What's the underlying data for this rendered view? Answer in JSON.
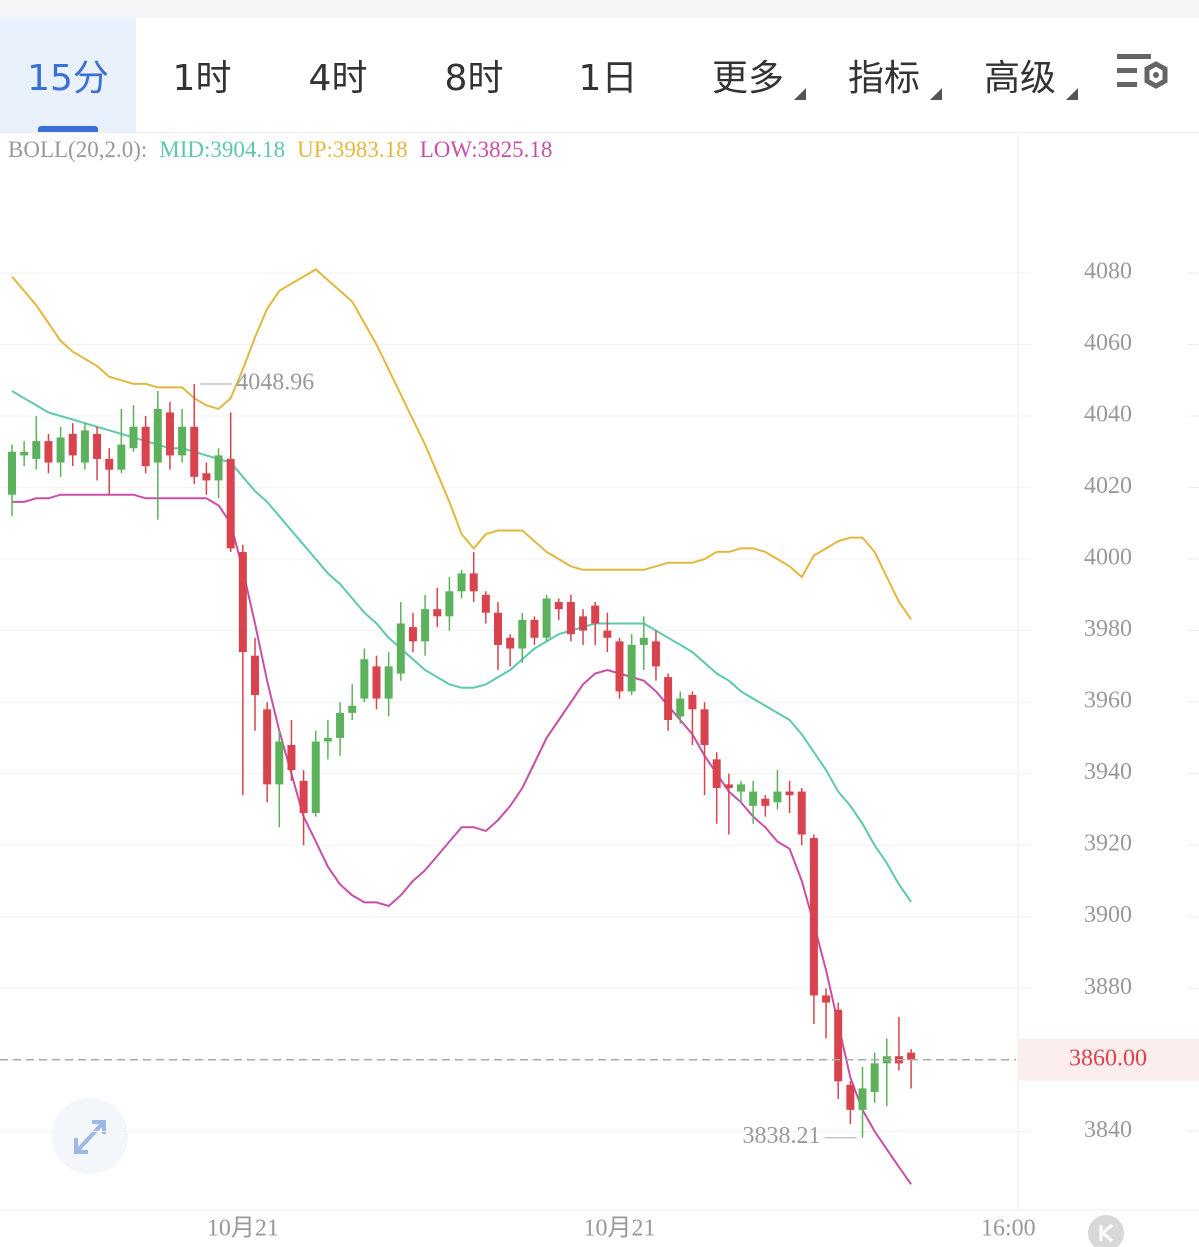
{
  "tabs": [
    "15分",
    "1时",
    "4时",
    "8时",
    "1日",
    "更多",
    "指标",
    "高级"
  ],
  "chart_data": {
    "type": "candlestick",
    "indicator": "BOLL(20,2.0):",
    "categories": [
      null,
      null,
      null,
      null,
      null,
      null,
      null,
      null,
      null,
      null,
      null,
      null,
      null,
      null,
      null,
      null,
      null,
      null,
      null,
      "10月21",
      null,
      null,
      null,
      null,
      null,
      null,
      null,
      null,
      null,
      null,
      null,
      null,
      null,
      null,
      null,
      null,
      null,
      null,
      null,
      null,
      null,
      null,
      null,
      null,
      null,
      null,
      null,
      null,
      null,
      null,
      "10月21",
      null,
      null,
      null,
      null,
      null,
      null,
      null,
      null,
      null,
      null,
      null,
      null,
      null,
      null,
      null,
      null,
      null,
      null,
      null,
      null,
      null,
      null,
      null,
      null,
      null,
      null,
      null,
      null,
      null,
      null,
      null,
      "16:00",
      null
    ],
    "open": [
      4018,
      4029,
      4028,
      4033,
      4027,
      4035,
      4027,
      4035,
      4028,
      4025,
      4031,
      4037,
      4027,
      4041,
      4029,
      4037,
      4024,
      4022,
      4028,
      4002,
      3973,
      3958,
      3937,
      3948,
      3938,
      3929,
      3949,
      3950,
      3957,
      3961,
      3970,
      3961,
      3968,
      3981,
      3977,
      3986,
      3984,
      3991,
      3996,
      3990,
      3985,
      3978,
      3975,
      3983,
      3978,
      3988,
      3988,
      3984,
      3987,
      3980,
      3977,
      3963,
      3976,
      3977,
      3967,
      3956,
      3962,
      3958,
      3944,
      3937,
      3935,
      3931,
      3933,
      3932,
      3935,
      3935,
      3922,
      3878,
      3874,
      3853,
      3846,
      3851,
      3859,
      3861,
      3862,
      null,
      null,
      null,
      null,
      null,
      null,
      null,
      null,
      null
    ],
    "high": [
      4032,
      4033,
      4040,
      4035,
      4037,
      4038,
      4038,
      4037,
      4031,
      4042,
      4043,
      4040,
      4047,
      4044,
      4042,
      4048.96,
      4027,
      4031,
      4041,
      4004,
      3978,
      3960,
      3952,
      3955,
      3941,
      3952,
      3955,
      3960,
      3965,
      3975,
      3973,
      3974,
      3988,
      3985,
      3990,
      3992,
      3995,
      3997,
      4002,
      3991,
      3988,
      3979,
      3985,
      3984,
      3990,
      3989,
      3990,
      3986,
      3988,
      3985,
      3978,
      3979,
      3984,
      3980,
      3968,
      3963,
      3963,
      3960,
      3946,
      3940,
      3938,
      3938,
      3934,
      3941,
      3938,
      3936,
      3923,
      3880,
      3876,
      3854,
      3858,
      3862,
      3866,
      3872,
      3863,
      null,
      null,
      null,
      null,
      null,
      null,
      null,
      null,
      null
    ],
    "low": [
      4012,
      4026,
      4025,
      4024,
      4023,
      4026,
      4025,
      4022,
      4018,
      4024,
      4030,
      4024,
      4011,
      4025,
      4027,
      4021,
      4018,
      4017,
      4002,
      3934,
      3952,
      3932,
      3925,
      3938,
      3920,
      3928,
      3944,
      3945,
      3955,
      3960,
      3958,
      3956,
      3966,
      3974,
      3973,
      3981,
      3980,
      3989,
      3988,
      3982,
      3969,
      3970,
      3971,
      3976,
      3977,
      3983,
      3977,
      3976,
      3976,
      3974,
      3961,
      3962,
      3969,
      3966,
      3952,
      3954,
      3948,
      3934,
      3926,
      3923,
      3932,
      3926,
      3928,
      3930,
      3929,
      3920,
      3870,
      3866,
      3849,
      3842,
      3838.21,
      3848,
      3847,
      3857,
      3852,
      null,
      null,
      null,
      null,
      null,
      null,
      null,
      null,
      null
    ],
    "close": [
      4030,
      4030,
      4033,
      4027,
      4034,
      4029,
      4036,
      4028,
      4025,
      4032,
      4037,
      4026,
      4042,
      4029,
      4037,
      4023,
      4022,
      4029,
      4003,
      3974,
      3962,
      3937,
      3949,
      3941,
      3929,
      3949,
      3950,
      3957,
      3959,
      3972,
      3961,
      3970,
      3982,
      3977,
      3986,
      3984,
      3991,
      3996,
      3991,
      3985,
      3976,
      3975,
      3983,
      3978,
      3989,
      3986,
      3979,
      3980,
      3982,
      3978,
      3963,
      3976,
      3978,
      3970,
      3955,
      3961,
      3958,
      3948,
      3936,
      3936,
      3937,
      3935,
      3931,
      3935,
      3934,
      3923,
      3878,
      3876,
      3854,
      3846,
      3852,
      3859,
      3861,
      3859,
      3860,
      null,
      null,
      null,
      null,
      null,
      null,
      null,
      null,
      null
    ],
    "up_color": "#5cb25c",
    "down_color": "#d9434e",
    "series": [
      {
        "name": "MID:3904.18",
        "color": "#5ec8ae",
        "values": [
          4047,
          4045,
          4043,
          4041,
          4040,
          4039,
          4038,
          4037,
          4036,
          4035,
          4034,
          4033,
          4032,
          4031,
          4031,
          4030,
          4029,
          4028,
          4027,
          4023,
          4019,
          4016,
          4012,
          4008,
          4004,
          4000,
          3996,
          3993,
          3989,
          3985,
          3982,
          3978,
          3975,
          3972,
          3969,
          3967,
          3965,
          3964,
          3964,
          3965,
          3967,
          3969,
          3972,
          3975,
          3977,
          3979,
          3980,
          3981,
          3982,
          3982,
          3982,
          3982,
          3982,
          3980,
          3978,
          3976,
          3974,
          3971,
          3968,
          3966,
          3963,
          3961,
          3959,
          3957,
          3955,
          3951,
          3946,
          3941,
          3935,
          3931,
          3926,
          3920,
          3915,
          3909,
          3904.18,
          null,
          null,
          null,
          null,
          null,
          null,
          null,
          null,
          null
        ]
      },
      {
        "name": "UP:3983.18",
        "color": "#e2b73e",
        "values": [
          4079,
          4075,
          4071,
          4066,
          4061,
          4058,
          4056,
          4054,
          4051,
          4050,
          4049,
          4049,
          4048,
          4048,
          4048,
          4045,
          4043,
          4042,
          4045,
          4053,
          4062,
          4070,
          4075,
          4077,
          4079,
          4081,
          4078,
          4075,
          4072,
          4066,
          4060,
          4053,
          4046,
          4039,
          4032,
          4024,
          4016,
          4007,
          4003,
          4007,
          4008,
          4008,
          4008,
          4005,
          4002,
          4000,
          3998,
          3997,
          3997,
          3997,
          3997,
          3997,
          3997,
          3998,
          3999,
          3999,
          3999,
          4000,
          4002,
          4002,
          4003,
          4003,
          4002,
          4000,
          3998,
          3995,
          4001,
          4003,
          4005,
          4006,
          4006,
          4002,
          3995,
          3988,
          3983.18,
          null,
          null,
          null,
          null,
          null,
          null,
          null,
          null,
          null
        ]
      },
      {
        "name": "LOW:3825.18",
        "color": "#c84fa9",
        "values": [
          4016,
          4016,
          4017,
          4017,
          4018,
          4018,
          4018,
          4018,
          4018,
          4018,
          4018,
          4017,
          4017,
          4017,
          4017,
          4017,
          4017,
          4015,
          4010,
          3997,
          3982,
          3966,
          3952,
          3940,
          3928,
          3921,
          3914,
          3909,
          3906,
          3904,
          3904,
          3903,
          3906,
          3910,
          3913,
          3917,
          3921,
          3925,
          3925,
          3924,
          3927,
          3931,
          3936,
          3943,
          3950,
          3955,
          3960,
          3965,
          3968,
          3969,
          3968,
          3967,
          3966,
          3963,
          3959,
          3955,
          3951,
          3945,
          3940,
          3935,
          3932,
          3928,
          3925,
          3921,
          3919,
          3910,
          3898,
          3885,
          3870,
          3855,
          3846,
          3840,
          3835,
          3830,
          3825.18,
          null,
          null,
          null,
          null,
          null,
          null,
          null,
          null,
          null
        ]
      }
    ],
    "ylim": [
      3818,
      4106
    ],
    "yticks": [
      3840,
      3860,
      3880,
      3900,
      3920,
      3940,
      3960,
      3980,
      4000,
      4020,
      4040,
      4060,
      4080
    ],
    "grid": true,
    "last_price": {
      "value": 3860,
      "label": "3860.00"
    },
    "high_mark": 4048.96,
    "low_mark": 3838.21
  }
}
